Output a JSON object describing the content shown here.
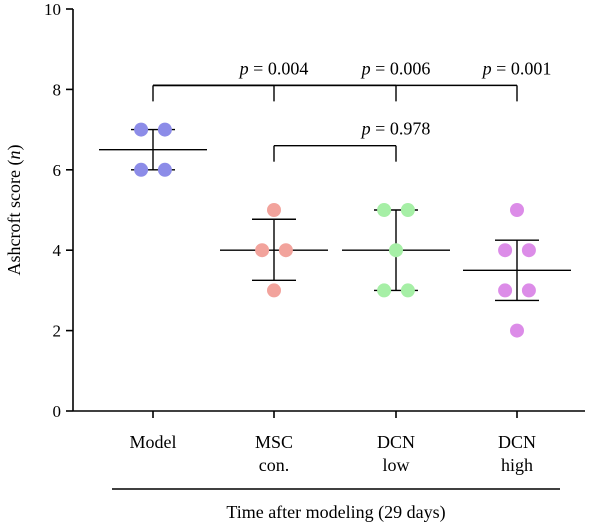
{
  "chart_data": {
    "type": "scatter",
    "ylabel_prefix": "Ashcroft score (",
    "ylabel_italic": "n",
    "ylabel_suffix": ")",
    "xlabel": "Time after modeling (29 days)",
    "ylim": [
      0,
      10
    ],
    "yticks": [
      0,
      2,
      4,
      6,
      8,
      10
    ],
    "grid": false,
    "legend": "none",
    "categories": [
      {
        "lines": [
          "Model"
        ],
        "color": "#8c8ce8",
        "values": [
          7,
          7,
          6,
          6
        ],
        "mean": 6.5,
        "sd_low": 6.0,
        "sd_high": 7.0
      },
      {
        "lines": [
          "MSC",
          "con."
        ],
        "color": "#f2a39c",
        "values": [
          5,
          4,
          4,
          3
        ],
        "mean": 4.0,
        "sd_low": 3.25,
        "sd_high": 4.77
      },
      {
        "lines": [
          "DCN",
          "low"
        ],
        "color": "#a6efa6",
        "values": [
          5,
          5,
          4,
          3,
          3
        ],
        "mean": 4.0,
        "sd_low": 3.0,
        "sd_high": 5.0
      },
      {
        "lines": [
          "DCN",
          "high"
        ],
        "color": "#dc8ce8",
        "values": [
          5,
          4,
          4,
          3,
          3,
          2
        ],
        "mean": 3.5,
        "sd_low": 2.75,
        "sd_high": 4.25
      }
    ],
    "comparisons": [
      {
        "italic": "p",
        "text": " = 0.004",
        "from": 0,
        "to": 1,
        "level": 8.1
      },
      {
        "italic": "p",
        "text": " = 0.006",
        "from": 0,
        "to": 2,
        "level": 8.1
      },
      {
        "italic": "p",
        "text": " = 0.001",
        "from": 0,
        "to": 3,
        "level": 8.1
      },
      {
        "italic": "p",
        "text": " = 0.978",
        "from": 1,
        "to": 2,
        "level": 6.6
      }
    ]
  }
}
